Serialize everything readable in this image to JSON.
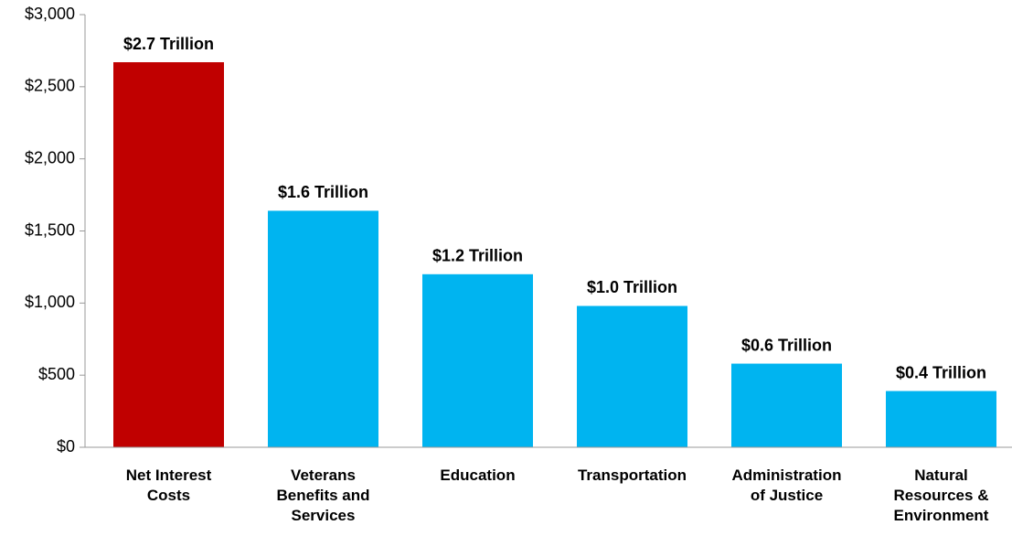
{
  "chart_data": {
    "type": "bar",
    "categories": [
      "Net Interest Costs",
      "Veterans Benefits and Services",
      "Education",
      "Transportation",
      "Administration of Justice",
      "Natural Resources & Environment"
    ],
    "values": [
      2670,
      1640,
      1200,
      980,
      580,
      390
    ],
    "value_labels": [
      "$2.7 Trillion",
      "$1.6 Trillion",
      "$1.2 Trillion",
      "$1.0 Trillion",
      "$0.6 Trillion",
      "$0.4 Trillion"
    ],
    "colors": [
      "#c00000",
      "#00b4f0",
      "#00b4f0",
      "#00b4f0",
      "#00b4f0",
      "#00b4f0"
    ],
    "ylim": [
      0,
      3000
    ],
    "yticks": [
      {
        "value": 0,
        "label": "$0"
      },
      {
        "value": 500,
        "label": "$500"
      },
      {
        "value": 1000,
        "label": "$1,000"
      },
      {
        "value": 1500,
        "label": "$1,500"
      },
      {
        "value": 2000,
        "label": "$2,000"
      },
      {
        "value": 2500,
        "label": "$2,500"
      },
      {
        "value": 3000,
        "label": "$3,000"
      }
    ],
    "grid": false
  }
}
